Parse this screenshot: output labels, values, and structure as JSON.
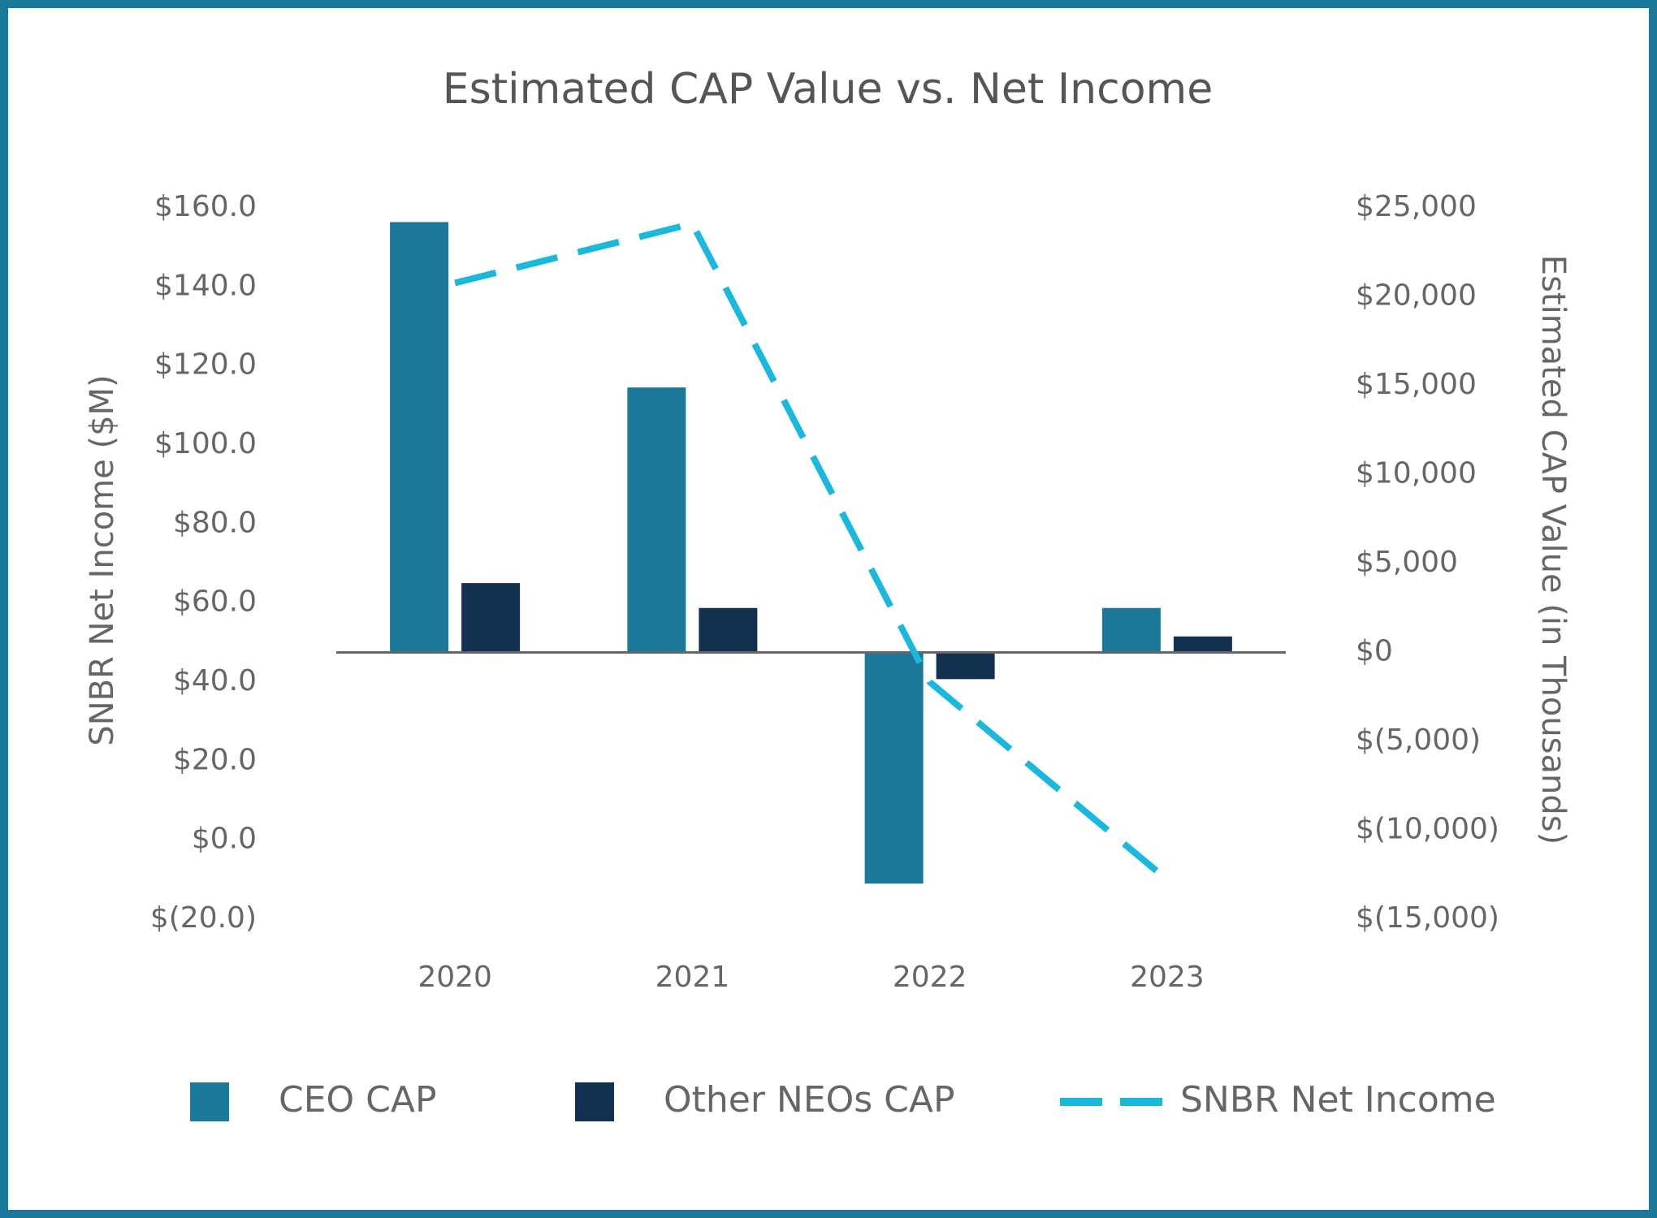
{
  "chart_data": {
    "type": "bar_line",
    "title": "Estimated CAP Value vs. Net Income",
    "ylabel": "SNBR Net Income ($M)",
    "y2label": "Estimated CAP Value (in Thousands)",
    "categories": [
      "2020",
      "2021",
      "2022",
      "2023"
    ],
    "series": [
      {
        "name": "CEO CAP",
        "type": "bar",
        "axis": "y2",
        "color": "#1b7898",
        "values": [
          24200,
          14900,
          -13000,
          2500
        ]
      },
      {
        "name": "Other NEOs CAP",
        "type": "bar",
        "axis": "y2",
        "color": "#123050",
        "values": [
          3900,
          2500,
          -1500,
          900
        ]
      },
      {
        "name": "SNBR Net Income",
        "type": "line",
        "axis": "y",
        "color": "#1ab8dd",
        "dashed": true,
        "values": [
          141,
          156,
          40,
          -10
        ]
      }
    ],
    "ylim": [
      -20,
      160
    ],
    "yticks": [
      {
        "value": -20,
        "label": "$(20.0)"
      },
      {
        "value": 0,
        "label": "$0.0"
      },
      {
        "value": 20,
        "label": "$20.0"
      },
      {
        "value": 40,
        "label": "$40.0"
      },
      {
        "value": 60,
        "label": "$60.0"
      },
      {
        "value": 80,
        "label": "$80.0"
      },
      {
        "value": 100,
        "label": "$100.0"
      },
      {
        "value": 120,
        "label": "$120.0"
      },
      {
        "value": 140,
        "label": "$140.0"
      },
      {
        "value": 160,
        "label": "$160.0"
      }
    ],
    "y2lim": [
      -15000,
      25000
    ],
    "y2ticks": [
      {
        "value": -15000,
        "label": "$(15,000)"
      },
      {
        "value": -10000,
        "label": "$(10,000)"
      },
      {
        "value": -5000,
        "label": "$(5,000)"
      },
      {
        "value": 0,
        "label": "$0"
      },
      {
        "value": 5000,
        "label": "$5,000"
      },
      {
        "value": 10000,
        "label": "$10,000"
      },
      {
        "value": 15000,
        "label": "$15,000"
      },
      {
        "value": 20000,
        "label": "$20,000"
      },
      {
        "value": 25000,
        "label": "$25,000"
      }
    ],
    "grid": false,
    "legend": "bottom"
  }
}
